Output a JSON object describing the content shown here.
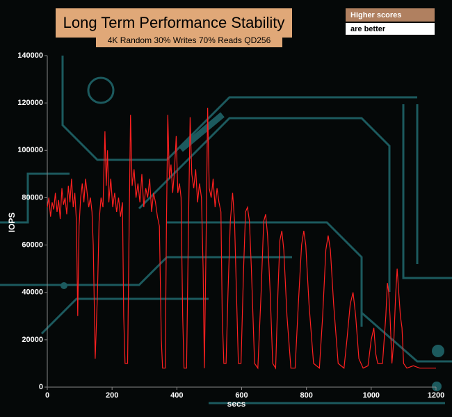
{
  "chart_data": {
    "type": "line",
    "title": "Long Term Performance Stability",
    "subtitle": "4K Random 30% Writes 70% Reads QD256",
    "legend_title": "Higher scores",
    "legend_text": "are better",
    "xlabel": "secs",
    "ylabel": "IOPS",
    "xlim": [
      0,
      1200
    ],
    "xticks": [
      0,
      200,
      400,
      600,
      800,
      1000,
      1200
    ],
    "ylim": [
      0,
      140000
    ],
    "yticks": [
      0,
      20000,
      40000,
      60000,
      80000,
      100000,
      120000,
      140000
    ],
    "x": [
      0,
      5,
      10,
      15,
      20,
      25,
      30,
      35,
      40,
      45,
      50,
      55,
      60,
      65,
      70,
      75,
      80,
      85,
      90,
      94,
      98,
      103,
      108,
      113,
      118,
      123,
      128,
      133,
      138,
      142,
      148,
      155,
      160,
      166,
      172,
      178,
      182,
      186,
      190,
      196,
      202,
      208,
      214,
      220,
      226,
      232,
      236,
      240,
      248,
      252,
      257,
      262,
      268,
      274,
      280,
      286,
      292,
      298,
      304,
      310,
      316,
      322,
      328,
      334,
      340,
      346,
      352,
      356,
      364,
      368,
      372,
      377,
      382,
      387,
      392,
      398,
      403,
      408,
      413,
      418,
      422,
      430,
      436,
      441,
      446,
      452,
      458,
      464,
      470,
      476,
      481,
      485,
      490,
      495,
      500,
      506,
      512,
      518,
      524,
      530,
      536,
      540,
      545,
      552,
      558,
      565,
      572,
      578,
      584,
      590,
      598,
      606,
      612,
      618,
      624,
      630,
      640,
      650,
      660,
      668,
      674,
      680,
      688,
      696,
      705,
      712,
      718,
      724,
      730,
      740,
      752,
      765,
      775,
      785,
      792,
      798,
      808,
      822,
      840,
      850,
      860,
      867,
      874,
      884,
      898,
      916,
      925,
      935,
      944,
      952,
      962,
      975,
      990,
      1000,
      1008,
      1014,
      1020,
      1035,
      1045,
      1050,
      1054,
      1058,
      1064,
      1070,
      1075,
      1080,
      1085,
      1090,
      1095,
      1100,
      1110,
      1130,
      1150,
      1180,
      1200
    ],
    "series": [
      {
        "name": "IOPS",
        "color": "#ff2020",
        "values": [
          76000,
          80000,
          72000,
          78000,
          75000,
          82000,
          74000,
          79000,
          71000,
          84000,
          77000,
          80000,
          73000,
          85000,
          78000,
          88000,
          76000,
          82000,
          70000,
          30000,
          68000,
          80000,
          86000,
          78000,
          88000,
          82000,
          76000,
          80000,
          74000,
          60000,
          12000,
          40000,
          70000,
          80000,
          76000,
          108000,
          85000,
          100000,
          78000,
          88000,
          76000,
          82000,
          74000,
          80000,
          72000,
          78000,
          30000,
          10000,
          10000,
          60000,
          115000,
          85000,
          92000,
          80000,
          86000,
          78000,
          90000,
          76000,
          84000,
          80000,
          88000,
          74000,
          82000,
          78000,
          72000,
          68000,
          20000,
          8000,
          8000,
          70000,
          115000,
          88000,
          94000,
          82000,
          90000,
          106000,
          82000,
          86000,
          80000,
          30000,
          8000,
          8000,
          70000,
          114000,
          90000,
          84000,
          92000,
          78000,
          86000,
          80000,
          50000,
          8000,
          60000,
          118000,
          84000,
          80000,
          88000,
          76000,
          84000,
          78000,
          74000,
          30000,
          10000,
          10000,
          40000,
          70000,
          82000,
          70000,
          40000,
          10000,
          10000,
          50000,
          74000,
          76000,
          70000,
          50000,
          10000,
          8000,
          40000,
          70000,
          73000,
          64000,
          40000,
          10000,
          8000,
          40000,
          62000,
          66000,
          58000,
          30000,
          8000,
          8000,
          35000,
          60000,
          66000,
          60000,
          35000,
          10000,
          8000,
          30000,
          58000,
          64000,
          58000,
          35000,
          10000,
          8000,
          20000,
          35000,
          40000,
          30000,
          12000,
          8000,
          9000,
          20000,
          25000,
          14000,
          10000,
          10000,
          30000,
          44000,
          40000,
          30000,
          10000,
          20000,
          38000,
          50000,
          40000,
          30000,
          25000,
          10000,
          8000,
          9000,
          8000,
          8000,
          8000
        ]
      }
    ]
  }
}
